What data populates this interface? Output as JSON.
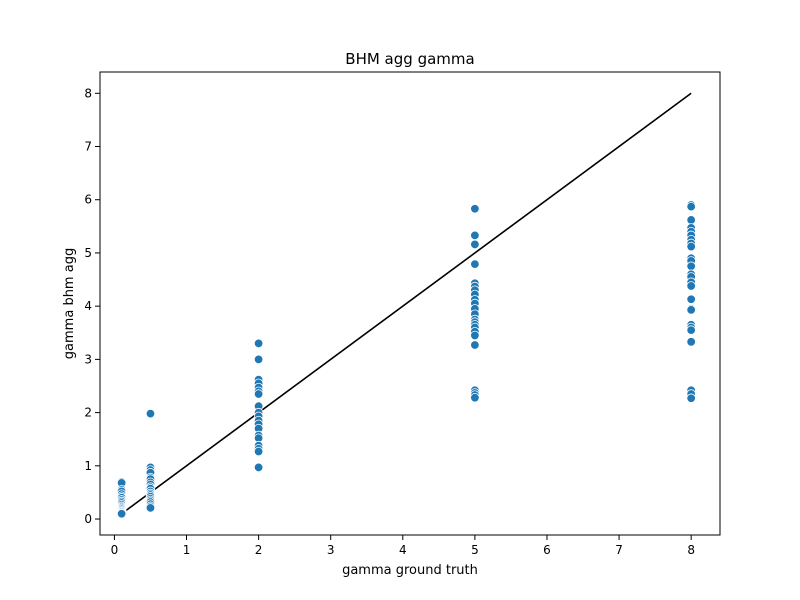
{
  "chart_data": {
    "type": "scatter",
    "title": "BHM agg gamma",
    "xlabel": "gamma ground truth",
    "ylabel": "gamma bhm agg",
    "xlim": [
      -0.2,
      8.4
    ],
    "ylim": [
      -0.3,
      8.4
    ],
    "xticks": [
      "0",
      "1",
      "2",
      "3",
      "4",
      "5",
      "6",
      "7",
      "8"
    ],
    "yticks": [
      "0",
      "1",
      "2",
      "3",
      "4",
      "5",
      "6",
      "7",
      "8"
    ],
    "grid": false,
    "point_color": "#1f77b4",
    "line_color": "#000000",
    "reference_line": {
      "x": [
        0.1,
        8
      ],
      "y": [
        0.1,
        8
      ]
    },
    "series": [
      {
        "x": [
          0.1,
          0.1,
          0.1,
          0.1,
          0.1,
          0.1,
          0.1,
          0.1,
          0.1,
          0.1,
          0.1,
          0.1,
          0.1,
          0.1,
          0.1,
          0.1,
          0.1,
          0.1,
          0.1,
          0.1,
          0.5,
          0.5,
          0.5,
          0.5,
          0.5,
          0.5,
          0.5,
          0.5,
          0.5,
          0.5,
          0.5,
          0.5,
          0.5,
          0.5,
          0.5,
          0.5,
          0.5,
          0.5,
          0.5,
          0.5,
          2,
          2,
          2,
          2,
          2,
          2,
          2,
          2,
          2,
          2,
          2,
          2,
          2,
          2,
          2,
          2,
          2,
          2,
          2,
          5,
          5,
          5,
          5,
          5,
          5,
          5,
          5,
          5,
          5,
          5,
          5,
          5,
          5,
          5,
          5,
          5,
          5,
          5,
          5,
          5,
          5,
          5,
          8,
          8,
          8,
          8,
          8,
          8,
          8,
          8,
          8,
          8,
          8,
          8,
          8,
          8,
          8,
          8,
          8,
          8,
          8,
          8,
          8,
          8,
          8,
          8,
          8,
          8
        ],
        "y": [
          0.7,
          0.68,
          0.55,
          0.52,
          0.47,
          0.43,
          0.4,
          0.36,
          0.33,
          0.3,
          0.27,
          0.24,
          0.22,
          0.2,
          0.18,
          0.16,
          0.14,
          0.13,
          0.11,
          0.1,
          1.98,
          0.97,
          0.92,
          0.87,
          0.78,
          0.75,
          0.69,
          0.65,
          0.6,
          0.57,
          0.52,
          0.48,
          0.45,
          0.42,
          0.38,
          0.35,
          0.32,
          0.28,
          0.24,
          0.21,
          3.3,
          3.0,
          2.62,
          2.55,
          2.47,
          2.4,
          2.35,
          2.12,
          2.0,
          1.93,
          1.85,
          1.78,
          1.7,
          1.57,
          1.52,
          1.38,
          1.32,
          1.27,
          0.97,
          5.83,
          5.33,
          5.16,
          4.79,
          4.43,
          4.37,
          4.3,
          4.22,
          4.12,
          4.05,
          3.95,
          3.85,
          3.75,
          3.7,
          3.65,
          3.6,
          3.52,
          3.45,
          3.27,
          2.42,
          2.37,
          2.33,
          2.28,
          5.9,
          5.87,
          5.62,
          5.47,
          5.4,
          5.33,
          5.25,
          5.18,
          5.12,
          4.9,
          4.85,
          4.75,
          4.6,
          4.55,
          4.45,
          4.38,
          4.13,
          3.95,
          3.93,
          3.65,
          3.6,
          3.55,
          3.33,
          2.42,
          2.35,
          2.27
        ]
      }
    ]
  }
}
